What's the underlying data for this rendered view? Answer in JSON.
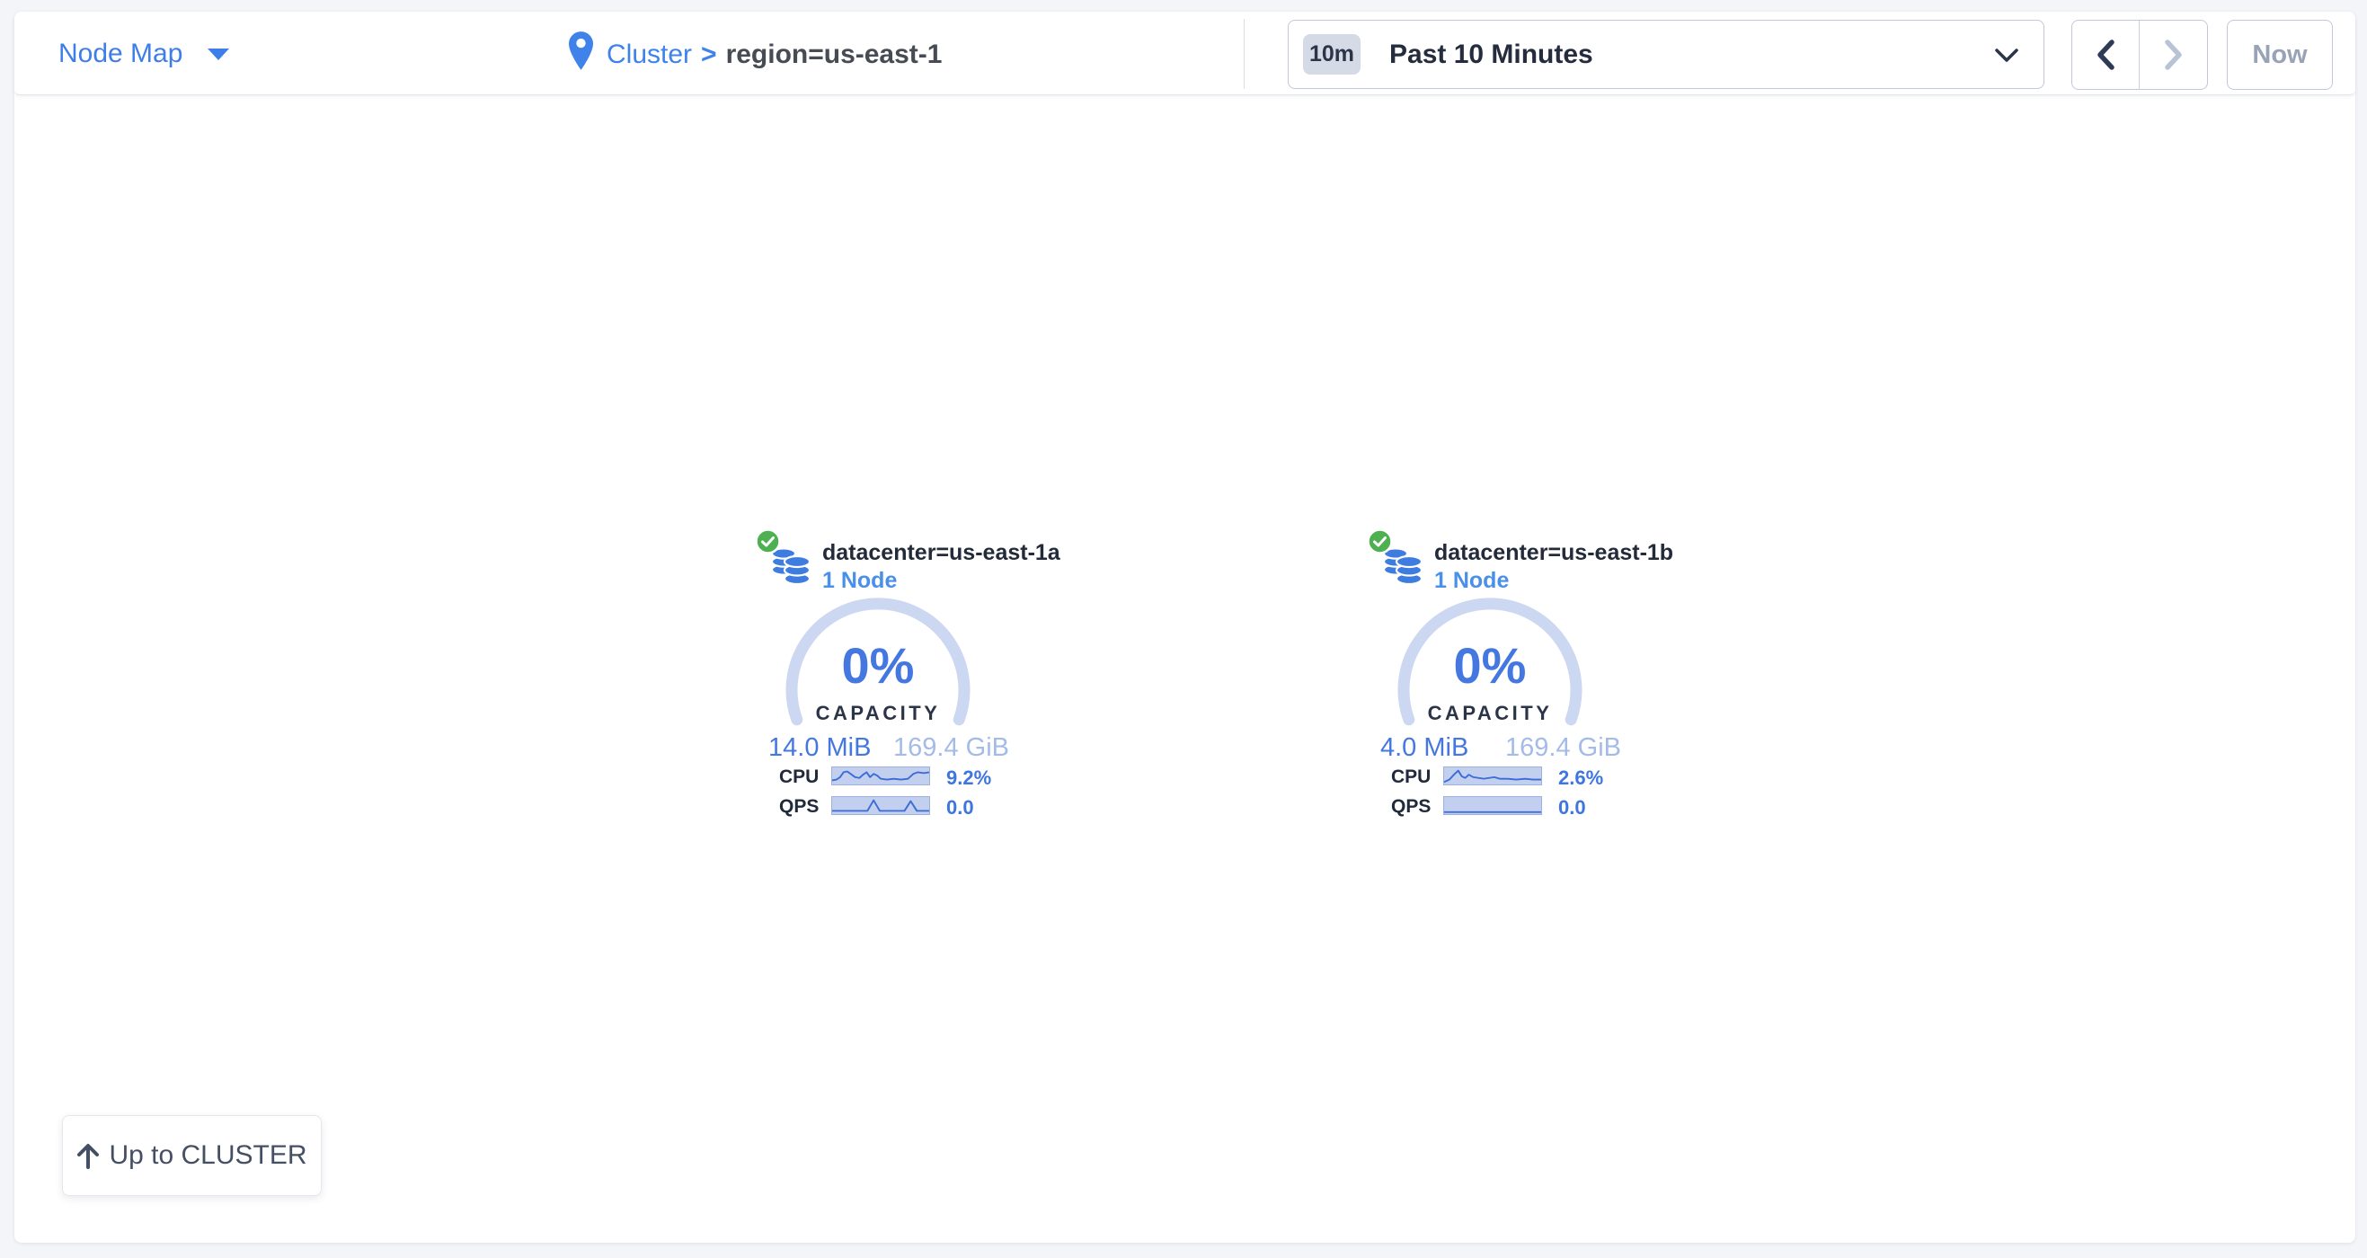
{
  "header": {
    "view_selector": {
      "label": "Node Map"
    },
    "breadcrumb": {
      "root": "Cluster",
      "separator": ">",
      "current": "region=us-east-1"
    },
    "time": {
      "badge": "10m",
      "range": "Past 10 Minutes",
      "now": "Now"
    }
  },
  "datacenters": [
    {
      "status": "healthy",
      "name": "datacenter=us-east-1a",
      "nodes": "1 Node",
      "capacity": {
        "pct": "0%",
        "label": "CAPACITY",
        "used": "14.0 MiB",
        "total": "169.4 GiB"
      },
      "metrics": [
        {
          "label": "CPU",
          "value": "9.2%",
          "spark": [
            [
              0,
              16
            ],
            [
              5,
              15
            ],
            [
              9,
              12
            ],
            [
              13,
              6
            ],
            [
              17,
              5
            ],
            [
              21,
              8
            ],
            [
              26,
              12
            ],
            [
              31,
              13
            ],
            [
              35,
              9
            ],
            [
              39,
              6
            ],
            [
              43,
              12
            ],
            [
              47,
              8
            ],
            [
              51,
              10
            ],
            [
              55,
              14
            ],
            [
              62,
              15
            ],
            [
              70,
              14
            ],
            [
              78,
              15
            ],
            [
              86,
              14
            ],
            [
              92,
              8
            ],
            [
              97,
              6
            ],
            [
              104,
              7
            ],
            [
              110,
              6
            ]
          ]
        },
        {
          "label": "QPS",
          "value": "0.0",
          "spark": [
            [
              0,
              17
            ],
            [
              40,
              17
            ],
            [
              47,
              4
            ],
            [
              54,
              17
            ],
            [
              82,
              17
            ],
            [
              89,
              5
            ],
            [
              96,
              17
            ],
            [
              110,
              17
            ]
          ]
        }
      ]
    },
    {
      "status": "healthy",
      "name": "datacenter=us-east-1b",
      "nodes": "1 Node",
      "capacity": {
        "pct": "0%",
        "label": "CAPACITY",
        "used": "4.0 MiB",
        "total": "169.4 GiB"
      },
      "metrics": [
        {
          "label": "CPU",
          "value": "2.6%",
          "spark": [
            [
              0,
              18
            ],
            [
              6,
              15
            ],
            [
              12,
              8
            ],
            [
              16,
              4
            ],
            [
              20,
              11
            ],
            [
              24,
              13
            ],
            [
              28,
              9
            ],
            [
              33,
              12
            ],
            [
              39,
              13
            ],
            [
              45,
              14
            ],
            [
              51,
              13
            ],
            [
              57,
              12
            ],
            [
              63,
              14
            ],
            [
              72,
              14
            ],
            [
              82,
              15
            ],
            [
              92,
              14
            ],
            [
              101,
              15
            ],
            [
              110,
              15
            ]
          ]
        },
        {
          "label": "QPS",
          "value": "0.0",
          "spark": [
            [
              0,
              18.5
            ],
            [
              110,
              18.5
            ]
          ]
        }
      ]
    }
  ],
  "footer": {
    "up_button": "Up to CLUSTER"
  },
  "colors": {
    "accent_blue": "#3e7ee8",
    "dark_navy": "#2b3547",
    "gauge_track": "#ccd7f1",
    "spark_bg": "#c2cfee",
    "spark_line": "#3a6bd6",
    "healthy_green": "#4db151",
    "muted_blue": "#a4bbe8"
  }
}
